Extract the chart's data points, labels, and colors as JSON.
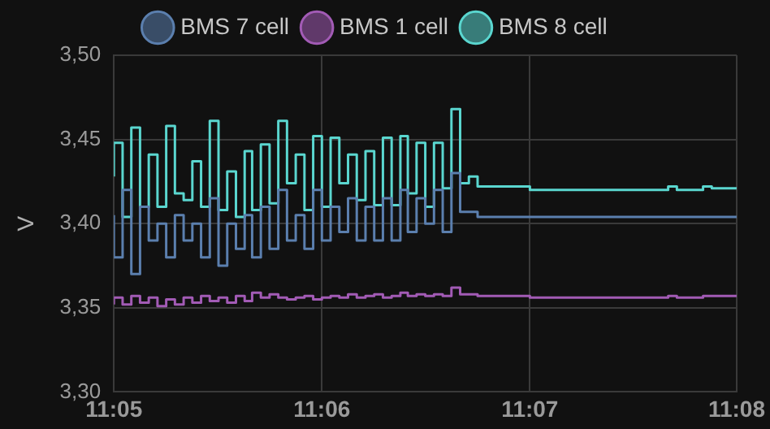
{
  "chart_data": {
    "type": "step",
    "ylabel": "V",
    "x": [
      11.0833,
      11.084,
      11.0847,
      11.0854,
      11.0861,
      11.0868,
      11.0875,
      11.0882,
      11.0889,
      11.0896,
      11.0903,
      11.091,
      11.0917,
      11.0924,
      11.0931,
      11.0938,
      11.0944,
      11.0951,
      11.0958,
      11.0965,
      11.0972,
      11.0979,
      11.0986,
      11.0993,
      11.1,
      11.1007,
      11.1014,
      11.1021,
      11.1028,
      11.1035,
      11.1042,
      11.1049,
      11.1056,
      11.1063,
      11.1069,
      11.1076,
      11.1083,
      11.109,
      11.1097,
      11.1104,
      11.1111,
      11.1118,
      11.1125,
      11.1167,
      11.1278,
      11.1285,
      11.1306,
      11.1313,
      11.1333
    ],
    "series": [
      {
        "name": "BMS 7 cell",
        "color": "#5b7fae",
        "values": [
          3.405,
          3.38,
          3.42,
          3.37,
          3.41,
          3.39,
          3.4,
          3.38,
          3.405,
          3.39,
          3.4,
          3.38,
          3.415,
          3.375,
          3.4,
          3.385,
          3.405,
          3.38,
          3.41,
          3.385,
          3.42,
          3.39,
          3.405,
          3.385,
          3.42,
          3.39,
          3.41,
          3.395,
          3.415,
          3.39,
          3.41,
          3.39,
          3.415,
          3.39,
          3.42,
          3.395,
          3.415,
          3.4,
          3.42,
          3.395,
          3.43,
          3.407,
          3.407,
          3.404,
          3.404,
          3.404,
          3.404,
          3.404,
          3.404
        ]
      },
      {
        "name": "BMS 1 cell",
        "color": "#a25bb5",
        "values": [
          3.352,
          3.356,
          3.352,
          3.357,
          3.353,
          3.356,
          3.351,
          3.355,
          3.352,
          3.356,
          3.353,
          3.357,
          3.354,
          3.356,
          3.353,
          3.357,
          3.354,
          3.359,
          3.356,
          3.358,
          3.356,
          3.355,
          3.356,
          3.357,
          3.355,
          3.356,
          3.357,
          3.356,
          3.358,
          3.356,
          3.357,
          3.358,
          3.356,
          3.357,
          3.359,
          3.357,
          3.358,
          3.357,
          3.358,
          3.357,
          3.362,
          3.358,
          3.358,
          3.357,
          3.356,
          3.357,
          3.356,
          3.357,
          3.357
        ]
      },
      {
        "name": "BMS 8 cell",
        "color": "#5ad6cf",
        "values": [
          3.428,
          3.448,
          3.404,
          3.457,
          3.41,
          3.441,
          3.41,
          3.458,
          3.418,
          3.414,
          3.437,
          3.41,
          3.461,
          3.408,
          3.431,
          3.404,
          3.443,
          3.408,
          3.447,
          3.412,
          3.461,
          3.424,
          3.441,
          3.408,
          3.452,
          3.41,
          3.451,
          3.424,
          3.441,
          3.414,
          3.443,
          3.411,
          3.451,
          3.411,
          3.452,
          3.418,
          3.448,
          3.41,
          3.448,
          3.421,
          3.468,
          3.424,
          3.428,
          3.422,
          3.42,
          3.422,
          3.42,
          3.422,
          3.421
        ]
      }
    ],
    "xlim": [
      11.0833,
      11.1333
    ],
    "xticks": [
      {
        "value": 11.0833,
        "label": "11:05"
      },
      {
        "value": 11.1,
        "label": "11:06"
      },
      {
        "value": 11.1167,
        "label": "11:07"
      },
      {
        "value": 11.1333,
        "label": "11:08"
      }
    ],
    "ylim": [
      3.3,
      3.5
    ],
    "yticks": [
      {
        "value": 3.3,
        "label": "3,30"
      },
      {
        "value": 3.35,
        "label": "3,35"
      },
      {
        "value": 3.4,
        "label": "3,40"
      },
      {
        "value": 3.45,
        "label": "3,45"
      },
      {
        "value": 3.5,
        "label": "3,50"
      }
    ],
    "grid": true,
    "legend": "top",
    "marker": "none",
    "line_style": "solid"
  }
}
